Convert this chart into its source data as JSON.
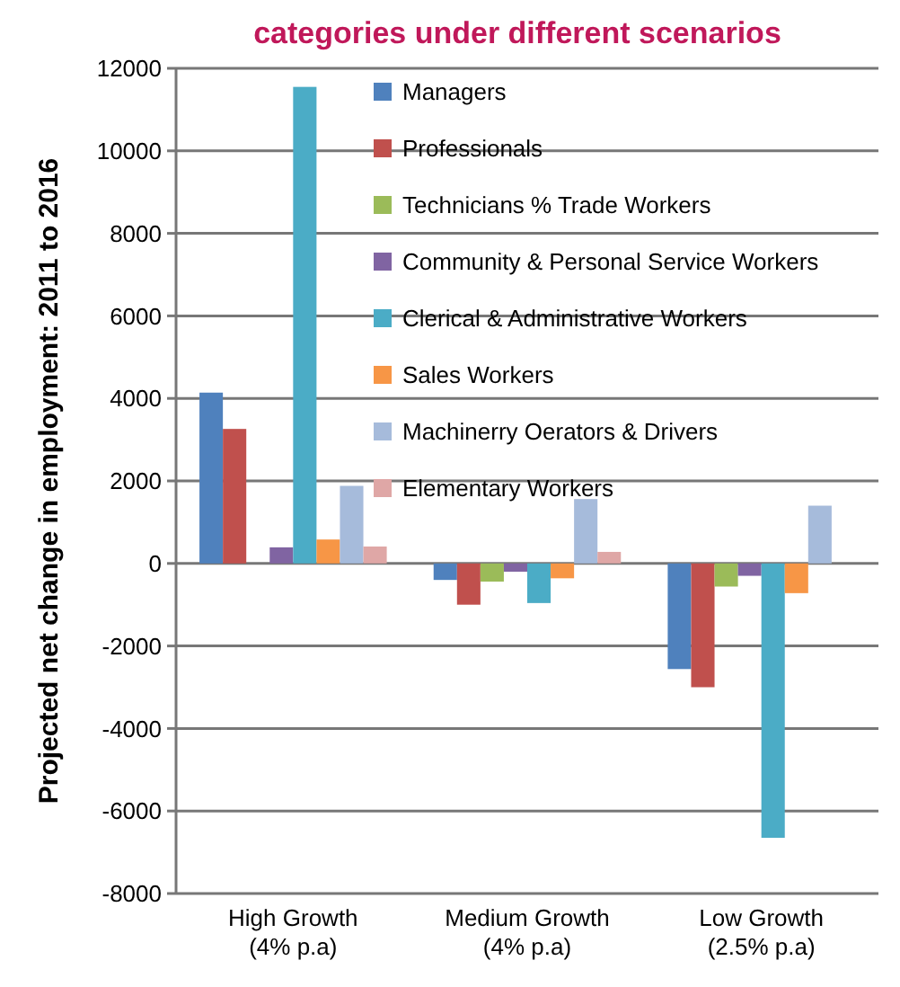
{
  "chart_data": {
    "type": "bar",
    "title": "categories under different scenarios",
    "ylabel": "Projected net change in employment: 2011 to 2016",
    "categories": [
      "High Growth (4% p.a)",
      "Medium Growth (4% p.a)",
      "Low Growth (2.5% p.a)"
    ],
    "series": [
      {
        "name": "Managers",
        "color": "#4f81bd",
        "values": [
          4140,
          -400,
          -2560
        ]
      },
      {
        "name": "Professionals",
        "color": "#c0504d",
        "values": [
          3260,
          -1000,
          -3000
        ]
      },
      {
        "name": "Technicians % Trade Workers",
        "color": "#9bbb59",
        "values": [
          0,
          -440,
          -560
        ]
      },
      {
        "name": "Community & Personal Service Workers",
        "color": "#8064a2",
        "values": [
          390,
          -200,
          -300
        ]
      },
      {
        "name": "Clerical & Administrative Workers",
        "color": "#4bacc6",
        "values": [
          11550,
          -960,
          -6650
        ]
      },
      {
        "name": "Sales Workers",
        "color": "#f79646",
        "values": [
          580,
          -360,
          -720
        ]
      },
      {
        "name": "Machinerry Oerators & Drivers",
        "color": "#a6bbdb",
        "values": [
          1880,
          1560,
          1400
        ]
      },
      {
        "name": "Elementary Workers",
        "color": "#dfa7a6",
        "values": [
          410,
          280,
          0
        ]
      }
    ],
    "ylim": [
      -8000,
      12000
    ],
    "yticks": [
      -8000,
      -6000,
      -4000,
      -2000,
      0,
      2000,
      4000,
      6000,
      8000,
      10000,
      12000
    ],
    "grid": "y",
    "legend": "top right"
  }
}
